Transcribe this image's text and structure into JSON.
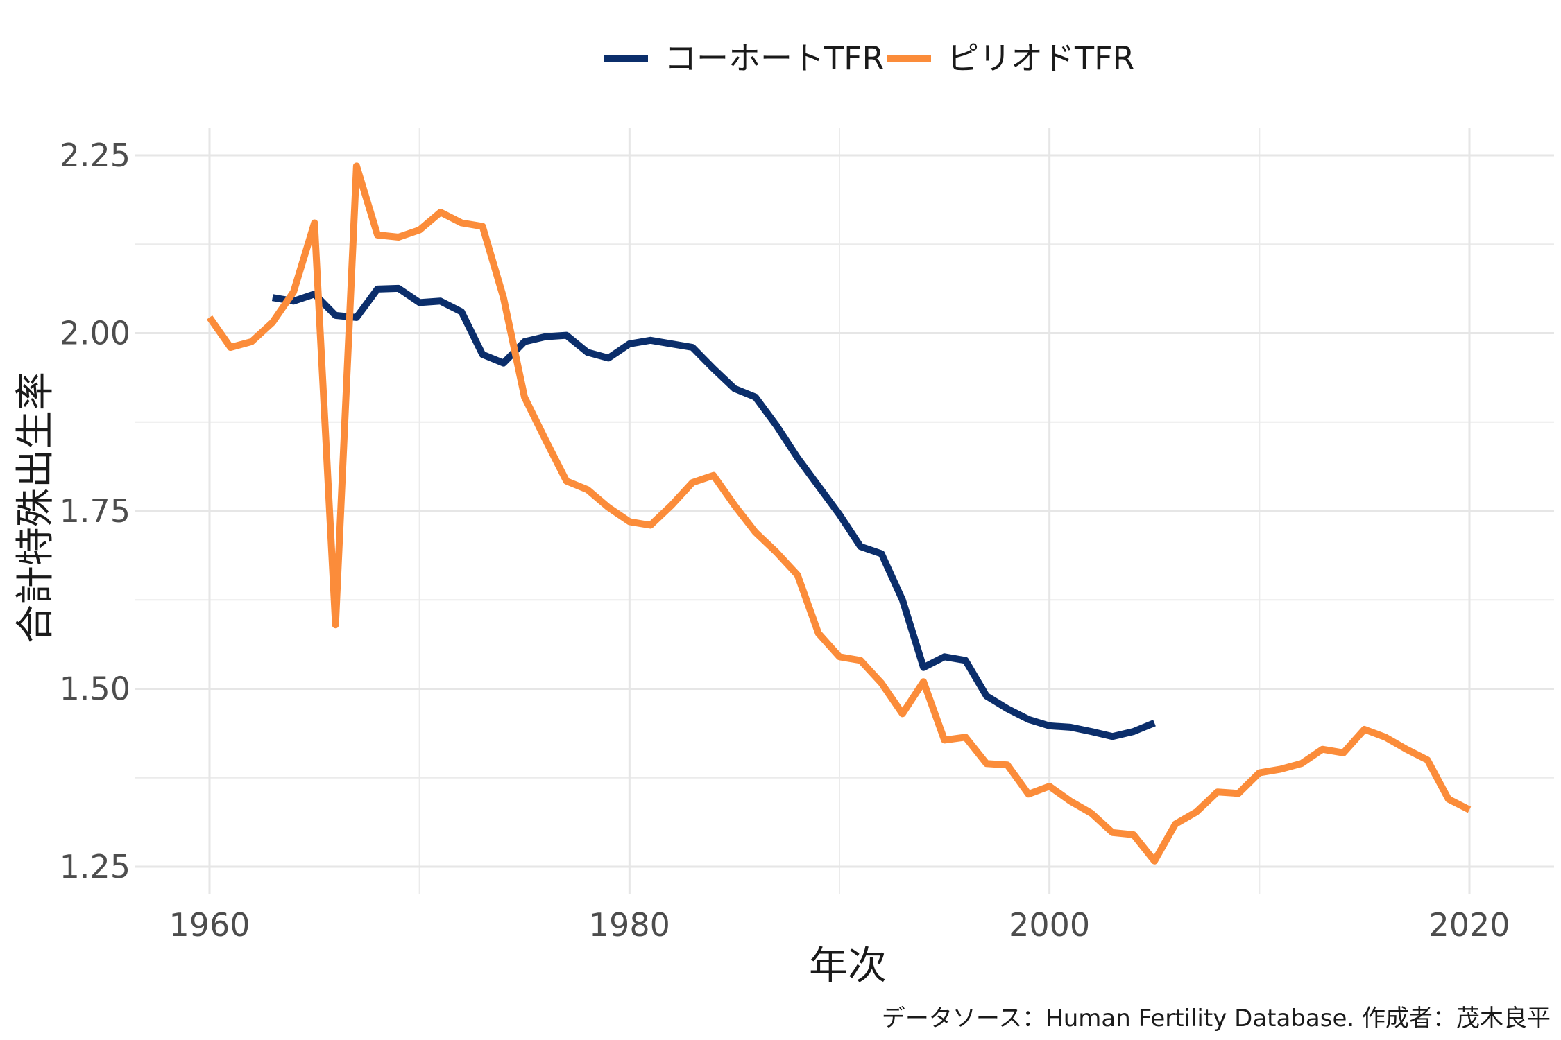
{
  "chart_data": {
    "type": "line",
    "title": "",
    "xlabel": "年次",
    "ylabel": "合計特殊出生率",
    "xlim": [
      1960,
      2020
    ],
    "ylim": [
      1.25,
      2.25
    ],
    "x_ticks": [
      "1960",
      "1980",
      "2000",
      "2020"
    ],
    "y_ticks": [
      "1.25",
      "1.50",
      "1.75",
      "2.00",
      "2.25"
    ],
    "grid": true,
    "legend_position": "top",
    "caption": "データソース：Human Fertility Database. 作成者：茂木良平",
    "series": [
      {
        "name": "コーホートTFR",
        "color": "#0b2e6b",
        "x": [
          1963,
          1964,
          1965,
          1966,
          1967,
          1968,
          1969,
          1970,
          1971,
          1972,
          1973,
          1974,
          1975,
          1976,
          1977,
          1978,
          1979,
          1980,
          1981,
          1982,
          1983,
          1984,
          1985,
          1986,
          1987,
          1988,
          1989,
          1990,
          1991,
          1992,
          1993,
          1994,
          1995,
          1996,
          1997,
          1998,
          1999,
          2000,
          2001,
          2002,
          2003,
          2004,
          2005
        ],
        "y": [
          2.05,
          2.045,
          2.055,
          2.025,
          2.022,
          2.062,
          2.063,
          2.043,
          2.045,
          2.03,
          1.97,
          1.958,
          1.988,
          1.995,
          1.997,
          1.973,
          1.965,
          1.985,
          1.99,
          1.985,
          1.98,
          1.95,
          1.922,
          1.91,
          1.87,
          1.825,
          1.785,
          1.745,
          1.7,
          1.69,
          1.625,
          1.53,
          1.545,
          1.54,
          1.49,
          1.472,
          1.457,
          1.448,
          1.446,
          1.44,
          1.433,
          1.44,
          1.452
        ]
      },
      {
        "name": "ピリオドTFR",
        "color": "#fb8c3a",
        "x": [
          1960,
          1961,
          1962,
          1963,
          1964,
          1965,
          1966,
          1967,
          1968,
          1969,
          1970,
          1971,
          1972,
          1973,
          1974,
          1975,
          1976,
          1977,
          1978,
          1979,
          1980,
          1981,
          1982,
          1983,
          1984,
          1985,
          1986,
          1987,
          1988,
          1989,
          1990,
          1991,
          1992,
          1993,
          1994,
          1995,
          1996,
          1997,
          1998,
          1999,
          2000,
          2001,
          2002,
          2003,
          2004,
          2005,
          2006,
          2007,
          2008,
          2009,
          2010,
          2011,
          2012,
          2013,
          2014,
          2015,
          2016,
          2017,
          2018,
          2019,
          2020
        ],
        "y": [
          2.022,
          1.98,
          1.988,
          2.015,
          2.058,
          2.155,
          1.59,
          2.235,
          2.138,
          2.135,
          2.145,
          2.17,
          2.155,
          2.15,
          2.05,
          1.91,
          1.85,
          1.792,
          1.78,
          1.755,
          1.735,
          1.73,
          1.758,
          1.79,
          1.8,
          1.758,
          1.72,
          1.692,
          1.66,
          1.578,
          1.545,
          1.54,
          1.508,
          1.465,
          1.51,
          1.428,
          1.432,
          1.395,
          1.393,
          1.352,
          1.363,
          1.342,
          1.325,
          1.298,
          1.295,
          1.258,
          1.31,
          1.327,
          1.355,
          1.353,
          1.382,
          1.387,
          1.395,
          1.415,
          1.41,
          1.443,
          1.432,
          1.415,
          1.4,
          1.345,
          1.33
        ]
      }
    ]
  }
}
